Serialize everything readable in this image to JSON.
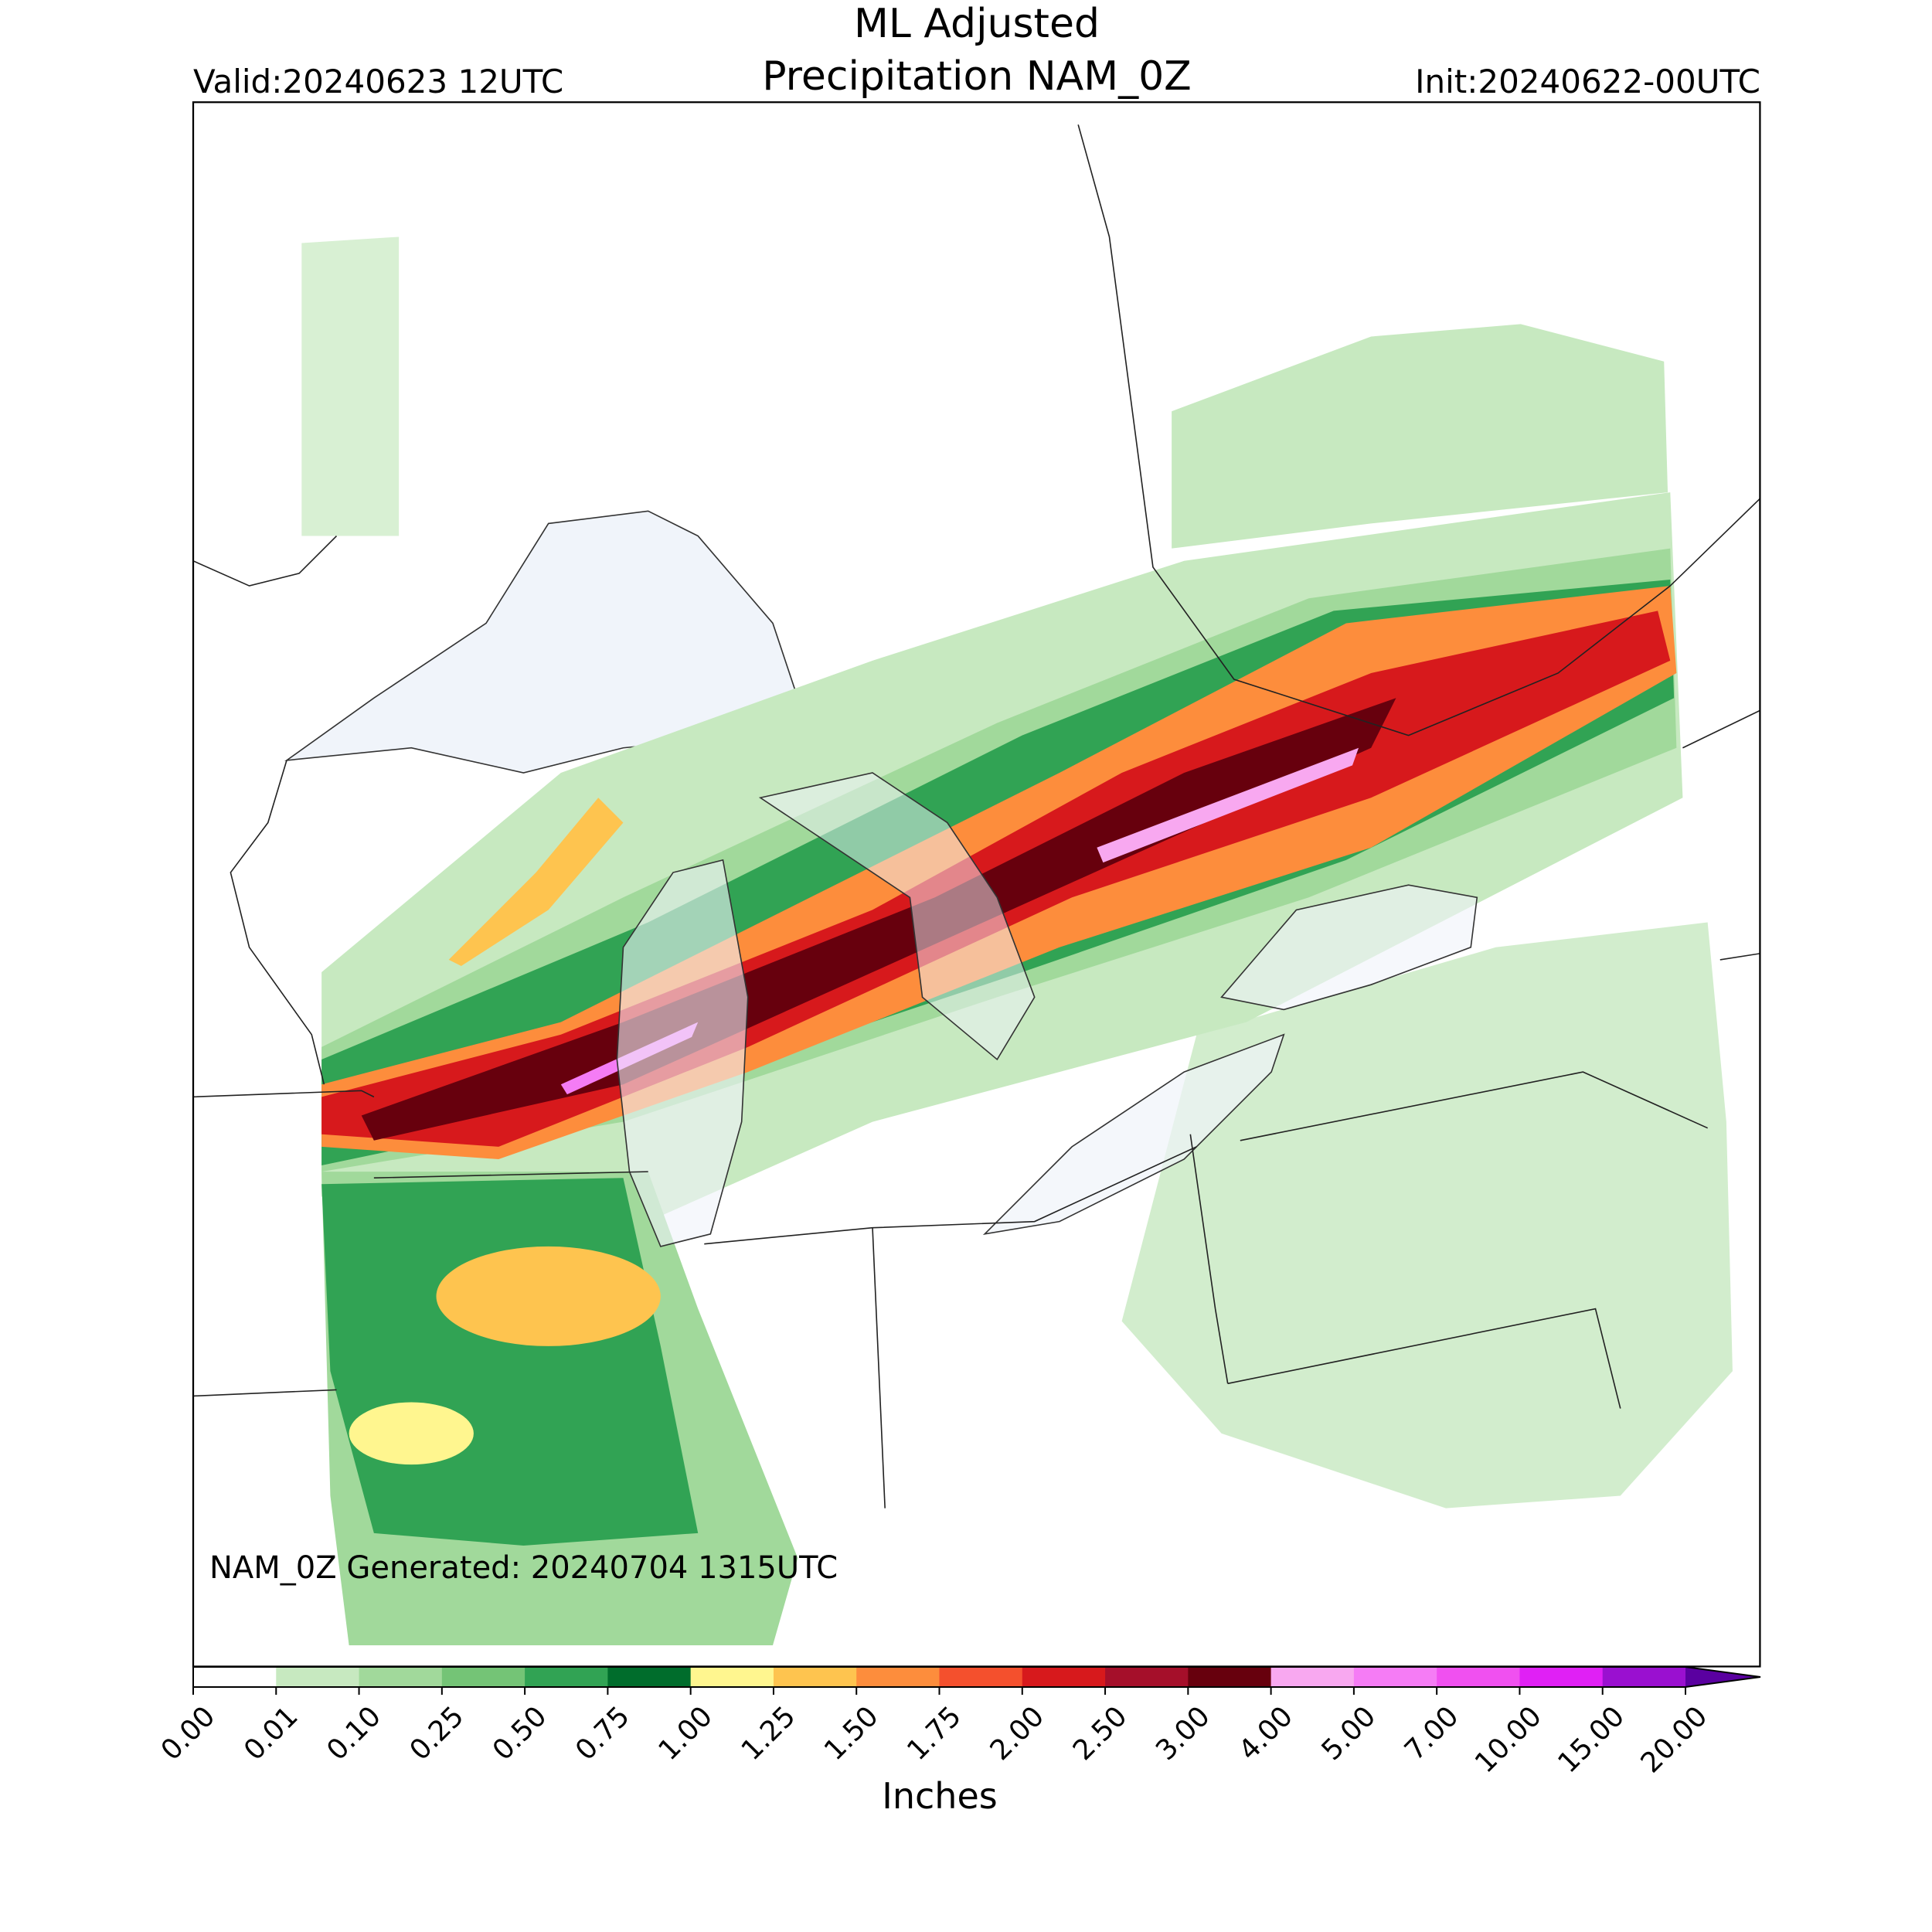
{
  "title": [
    "ML Adjusted",
    "Precipitation NAM_0Z"
  ],
  "valid": "Valid:20240623 12UTC",
  "init": "Init:20240622-00UTC",
  "generated": "NAM_0Z Generated: 20240704 1315UTC",
  "colorbar": {
    "label": "Inches",
    "ticks": [
      {
        "value": 0,
        "label": "0.00"
      },
      {
        "value": 0.01,
        "label": "0.01"
      },
      {
        "value": 0.1,
        "label": "0.10"
      },
      {
        "value": 0.25,
        "label": "0.25"
      },
      {
        "value": 0.5,
        "label": "0.50"
      },
      {
        "value": 0.75,
        "label": "0.75"
      },
      {
        "value": 1,
        "label": "1.00"
      },
      {
        "value": 1.25,
        "label": "1.25"
      },
      {
        "value": 1.5,
        "label": "1.50"
      },
      {
        "value": 1.75,
        "label": "1.75"
      },
      {
        "value": 2,
        "label": "2.00"
      },
      {
        "value": 2.5,
        "label": "2.50"
      },
      {
        "value": 3,
        "label": "3.00"
      },
      {
        "value": 4,
        "label": "4.00"
      },
      {
        "value": 5,
        "label": "5.00"
      },
      {
        "value": 7,
        "label": "7.00"
      },
      {
        "value": 10,
        "label": "10.00"
      },
      {
        "value": 15,
        "label": "15.00"
      },
      {
        "value": 20,
        "label": "20.00"
      }
    ],
    "colors": [
      "#ffffff",
      "#c7e9c0",
      "#a1d99b",
      "#74c476",
      "#31a354",
      "#006d2c",
      "#fff68f",
      "#fec44f",
      "#fd8d3c",
      "#f4502d",
      "#d7191c",
      "#a50f2a",
      "#67000d",
      "#f8a8f0",
      "#f57cf5",
      "#f050f0",
      "#e020f5",
      "#9a10d0"
    ],
    "extend_color": "#5a00a0"
  }
}
